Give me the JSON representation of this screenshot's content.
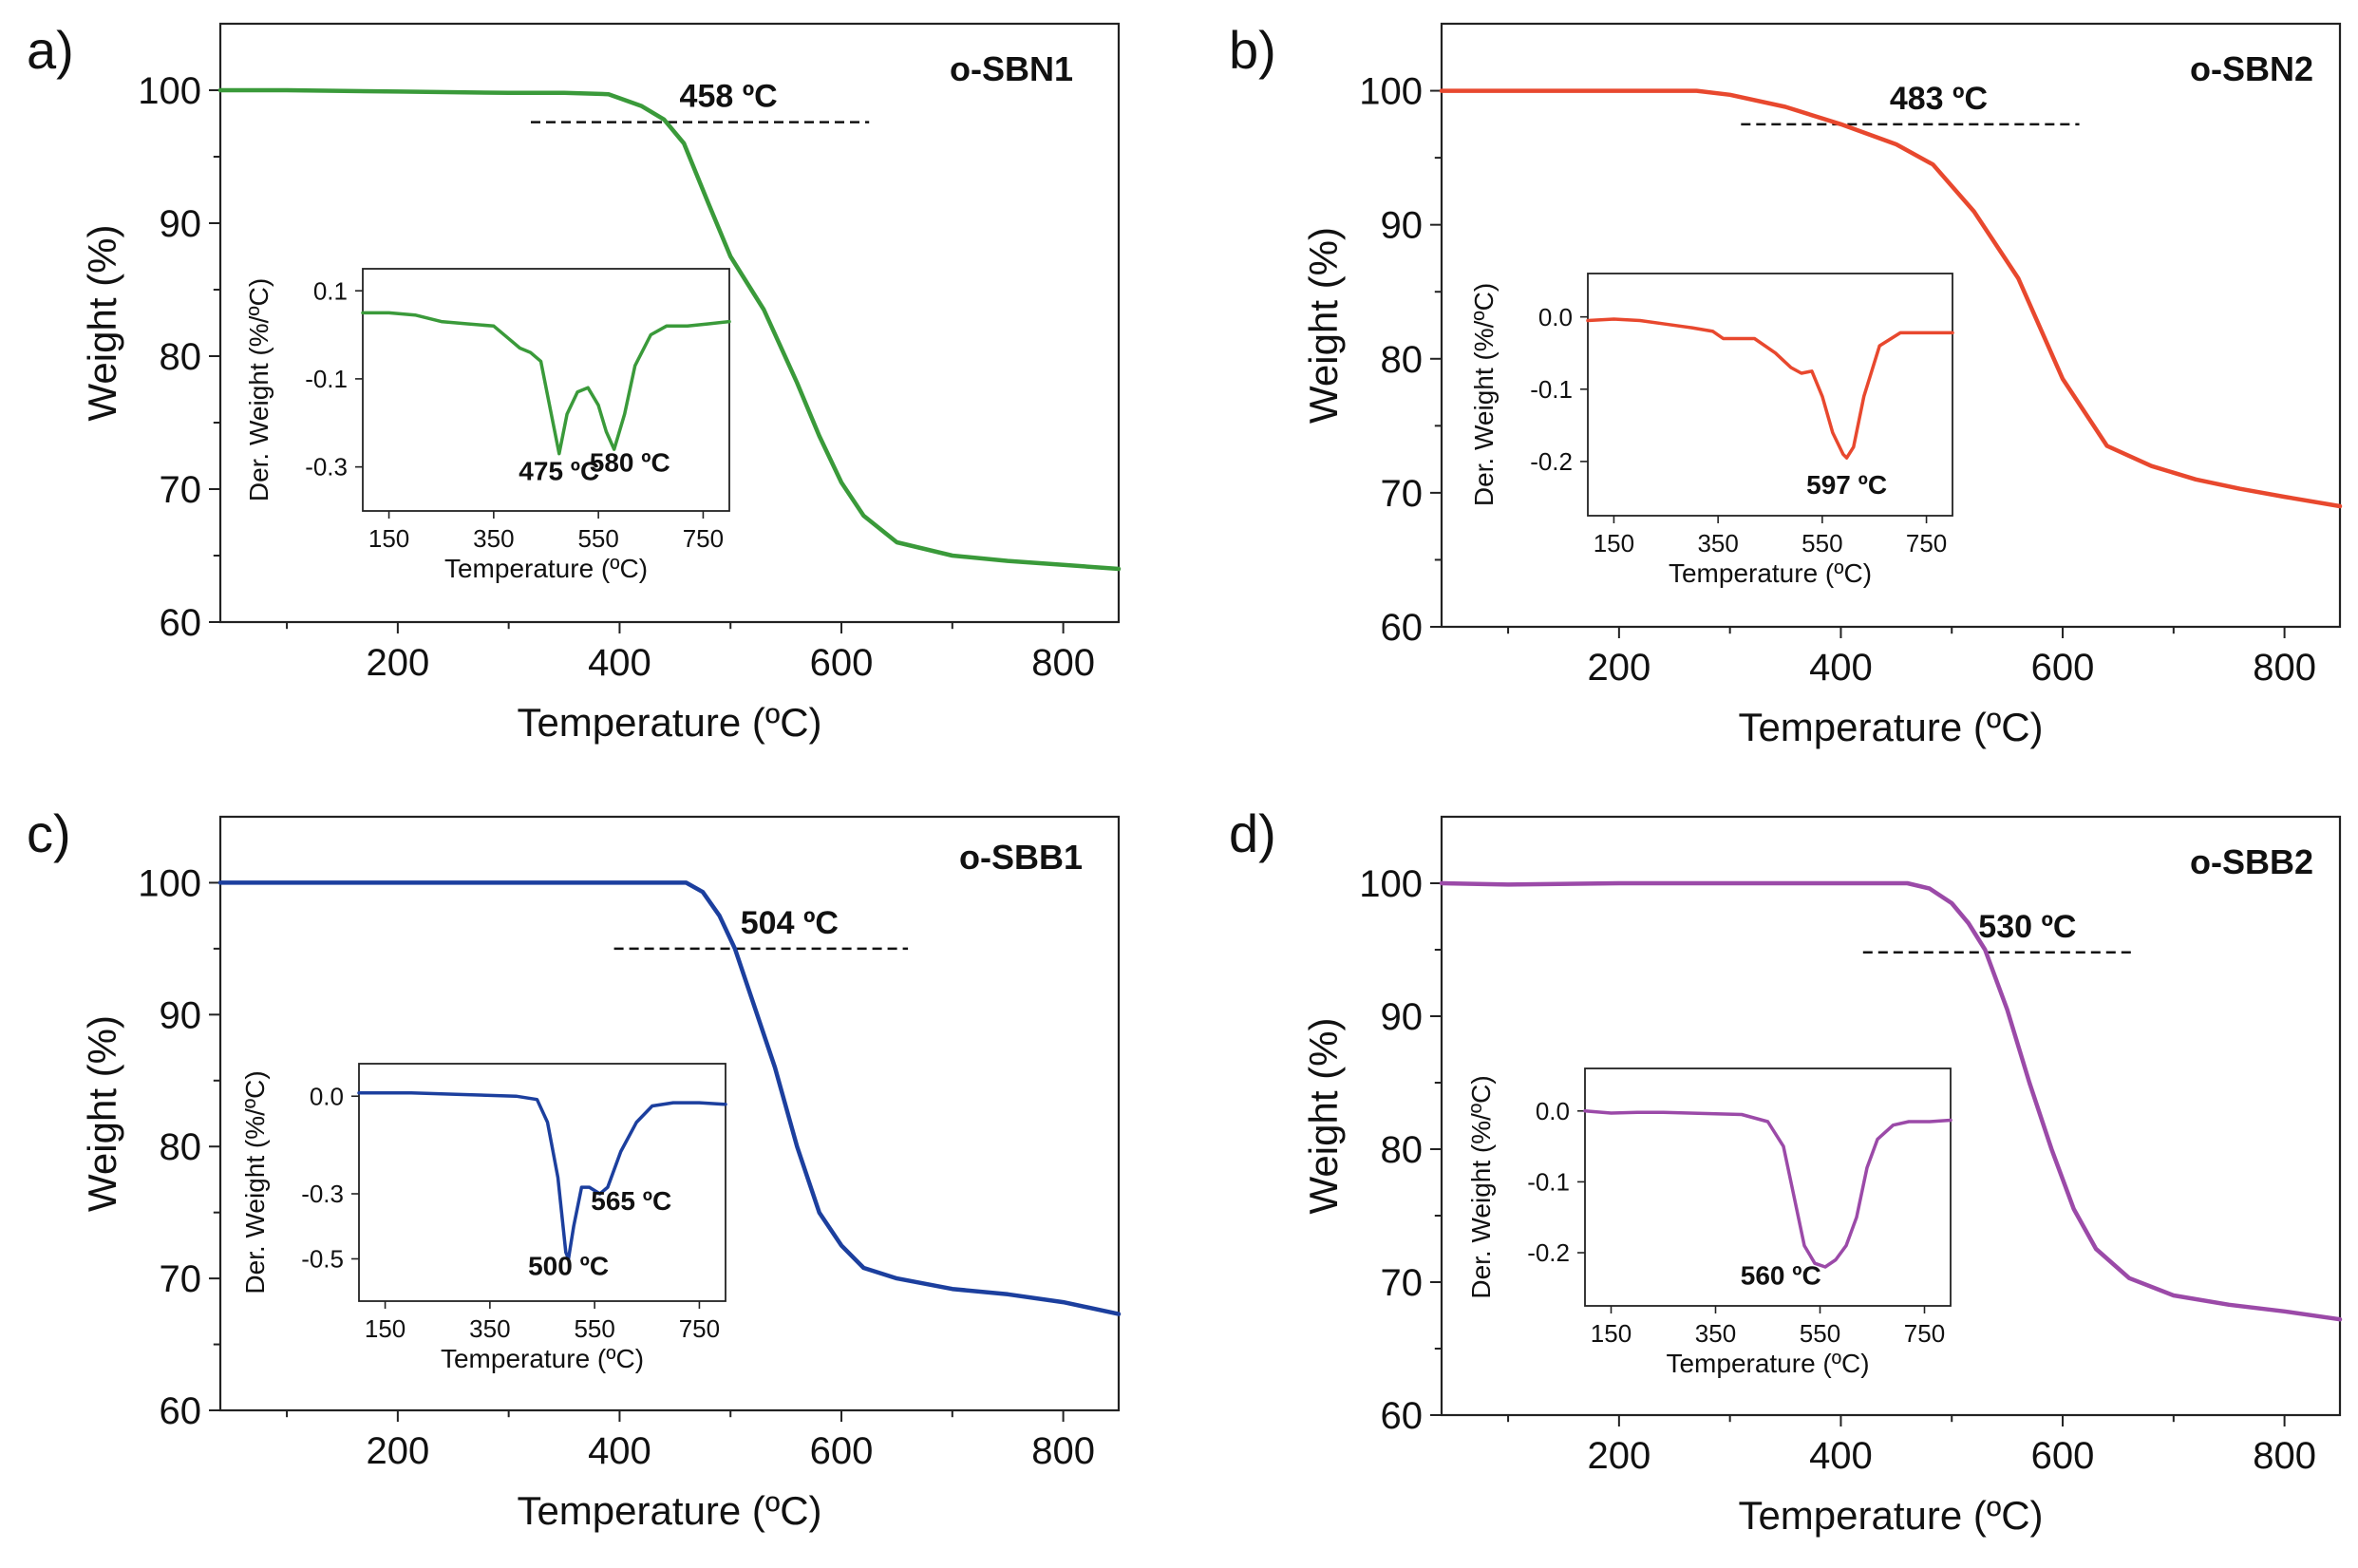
{
  "chart_data": [
    {
      "type": "line",
      "panel_label": "a)",
      "sample": "o-SBN1",
      "color": "#3a9a3a",
      "xlabel": "Temperature (ºC)",
      "ylabel": "Weight (%)",
      "xlim": [
        40,
        850
      ],
      "ylim": [
        60,
        105
      ],
      "xticks": [
        "200",
        "400",
        "600",
        "800"
      ],
      "yticks": [
        "60",
        "70",
        "80",
        "90",
        "100"
      ],
      "annotation": {
        "text": "458 ºC",
        "line_y": 97.6,
        "line_x": [
          320,
          625
        ]
      },
      "series": [
        {
          "name": "o-SBN1",
          "x": [
            40,
            100,
            200,
            300,
            350,
            390,
            400,
            420,
            440,
            458,
            480,
            500,
            530,
            560,
            580,
            600,
            620,
            650,
            700,
            750,
            800,
            850
          ],
          "y": [
            100,
            100,
            99.9,
            99.8,
            99.8,
            99.7,
            99.4,
            98.8,
            97.8,
            96,
            91.5,
            87.5,
            83.5,
            78,
            74,
            70.5,
            68,
            66,
            65,
            64.6,
            64.3,
            64
          ]
        }
      ],
      "inset": {
        "xlabel": "Temperature (ºC)",
        "ylabel": "Der. Weight (%/ºC)",
        "xlim": [
          100,
          800
        ],
        "ylim": [
          -0.4,
          0.15
        ],
        "xticks": [
          "150",
          "350",
          "550",
          "750"
        ],
        "yticks": [
          "0.1",
          "-0.1",
          "-0.3"
        ],
        "annotations": [
          {
            "text": "475 ºC",
            "x": 475,
            "y": -0.33
          },
          {
            "text": "580 ºC",
            "x": 610,
            "y": -0.31
          }
        ],
        "series": [
          {
            "name": "o-SBN1 DTG",
            "x": [
              100,
              150,
              200,
              250,
              300,
              350,
              380,
              400,
              420,
              440,
              460,
              475,
              490,
              510,
              530,
              550,
              565,
              580,
              600,
              620,
              650,
              680,
              720,
              760,
              800
            ],
            "y": [
              0.05,
              0.05,
              0.045,
              0.03,
              0.025,
              0.02,
              -0.01,
              -0.03,
              -0.04,
              -0.06,
              -0.18,
              -0.27,
              -0.18,
              -0.13,
              -0.12,
              -0.16,
              -0.22,
              -0.26,
              -0.18,
              -0.07,
              0.0,
              0.02,
              0.02,
              0.025,
              0.03
            ]
          }
        ]
      }
    },
    {
      "type": "line",
      "panel_label": "b)",
      "sample": "o-SBN2",
      "color": "#e8482e",
      "xlabel": "Temperature (ºC)",
      "ylabel": "Weight (%)",
      "xlim": [
        40,
        850
      ],
      "ylim": [
        60,
        105
      ],
      "xticks": [
        "200",
        "400",
        "600",
        "800"
      ],
      "yticks": [
        "60",
        "70",
        "80",
        "90",
        "100"
      ],
      "annotation": {
        "text": "483 ºC",
        "line_y": 97.5,
        "line_x": [
          310,
          615
        ]
      },
      "series": [
        {
          "name": "o-SBN2",
          "x": [
            40,
            100,
            200,
            270,
            300,
            350,
            400,
            450,
            483,
            520,
            560,
            600,
            640,
            680,
            720,
            760,
            800,
            850
          ],
          "y": [
            100,
            100,
            100,
            100,
            99.7,
            98.8,
            97.5,
            96,
            94.5,
            91,
            86,
            78.5,
            73.5,
            72,
            71,
            70.3,
            69.7,
            69
          ]
        }
      ],
      "inset": {
        "xlabel": "Temperature (ºC)",
        "ylabel": "Der. Weight (%/ºC)",
        "xlim": [
          100,
          800
        ],
        "ylim": [
          -0.275,
          0.06
        ],
        "xticks": [
          "150",
          "350",
          "550",
          "750"
        ],
        "yticks": [
          "0.0",
          "-0.1",
          "-0.2"
        ],
        "annotations": [
          {
            "text": "597 ºC",
            "x": 597,
            "y": -0.245
          }
        ],
        "series": [
          {
            "name": "o-SBN2 DTG",
            "x": [
              100,
              150,
              200,
              250,
              300,
              340,
              360,
              380,
              420,
              460,
              490,
              510,
              530,
              550,
              570,
              590,
              597,
              610,
              630,
              660,
              700,
              750,
              800
            ],
            "y": [
              -0.005,
              -0.003,
              -0.005,
              -0.01,
              -0.015,
              -0.02,
              -0.03,
              -0.03,
              -0.03,
              -0.05,
              -0.07,
              -0.078,
              -0.075,
              -0.11,
              -0.16,
              -0.19,
              -0.195,
              -0.18,
              -0.11,
              -0.04,
              -0.022,
              -0.022,
              -0.022
            ]
          }
        ]
      }
    },
    {
      "type": "line",
      "panel_label": "c)",
      "sample": "o-SBB1",
      "color": "#1c3f9e",
      "xlabel": "Temperature (ºC)",
      "ylabel": "Weight (%)",
      "xlim": [
        40,
        850
      ],
      "ylim": [
        60,
        105
      ],
      "xticks": [
        "200",
        "400",
        "600",
        "800"
      ],
      "yticks": [
        "60",
        "70",
        "80",
        "90",
        "100"
      ],
      "annotation": {
        "text": "504 ºC",
        "line_y": 95,
        "line_x": [
          395,
          660
        ]
      },
      "series": [
        {
          "name": "o-SBB1",
          "x": [
            40,
            100,
            200,
            300,
            400,
            460,
            475,
            490,
            504,
            520,
            540,
            560,
            580,
            600,
            620,
            650,
            700,
            750,
            800,
            850
          ],
          "y": [
            100,
            100,
            100,
            100,
            100,
            100,
            99.3,
            97.5,
            95,
            91,
            86,
            80,
            75,
            72.5,
            70.8,
            70,
            69.2,
            68.8,
            68.2,
            67.3
          ]
        }
      ],
      "inset": {
        "xlabel": "Temperature (ºC)",
        "ylabel": "Der. Weight (%/ºC)",
        "xlim": [
          100,
          800
        ],
        "ylim": [
          -0.63,
          0.1
        ],
        "xticks": [
          "150",
          "350",
          "550",
          "750"
        ],
        "yticks": [
          "0.0",
          "-0.3",
          "-0.5"
        ],
        "annotations": [
          {
            "text": "500 ºC",
            "x": 500,
            "y": -0.55
          },
          {
            "text": "565 ºC",
            "x": 620,
            "y": -0.35
          }
        ],
        "series": [
          {
            "name": "o-SBB1 DTG",
            "x": [
              100,
              150,
              200,
              300,
              400,
              440,
              460,
              480,
              495,
              500,
              510,
              525,
              540,
              560,
              575,
              600,
              630,
              660,
              700,
              750,
              800
            ],
            "y": [
              0.01,
              0.01,
              0.01,
              0.005,
              0.0,
              -0.01,
              -0.08,
              -0.25,
              -0.48,
              -0.5,
              -0.4,
              -0.28,
              -0.28,
              -0.3,
              -0.28,
              -0.17,
              -0.08,
              -0.03,
              -0.02,
              -0.02,
              -0.025
            ]
          }
        ]
      }
    },
    {
      "type": "line",
      "panel_label": "d)",
      "sample": "o-SBB2",
      "color": "#9b4aa8",
      "xlabel": "Temperature (ºC)",
      "ylabel": "Weight (%)",
      "xlim": [
        40,
        850
      ],
      "ylim": [
        60,
        105
      ],
      "xticks": [
        "200",
        "400",
        "600",
        "800"
      ],
      "yticks": [
        "60",
        "70",
        "80",
        "90",
        "100"
      ],
      "annotation": {
        "text": "530 ºC",
        "line_y": 94.8,
        "line_x": [
          420,
          665
        ]
      },
      "series": [
        {
          "name": "o-SBB2",
          "x": [
            40,
            100,
            200,
            300,
            400,
            460,
            480,
            500,
            515,
            530,
            550,
            570,
            590,
            610,
            630,
            660,
            700,
            750,
            800,
            850
          ],
          "y": [
            100,
            99.9,
            100,
            100,
            100,
            100,
            99.6,
            98.5,
            97,
            95,
            90.5,
            85,
            80,
            75.5,
            72.5,
            70.3,
            69,
            68.3,
            67.8,
            67.2
          ]
        }
      ],
      "inset": {
        "xlabel": "Temperature (ºC)",
        "ylabel": "Der. Weight (%/ºC)",
        "xlim": [
          100,
          800
        ],
        "ylim": [
          -0.275,
          0.06
        ],
        "xticks": [
          "150",
          "350",
          "550",
          "750"
        ],
        "yticks": [
          "0.0",
          "-0.1",
          "-0.2"
        ],
        "annotations": [
          {
            "text": "560 ºC",
            "x": 475,
            "y": -0.245
          }
        ],
        "series": [
          {
            "name": "o-SBB2 DTG",
            "x": [
              100,
              150,
              200,
              250,
              300,
              350,
              400,
              450,
              480,
              500,
              520,
              540,
              560,
              580,
              600,
              620,
              640,
              660,
              690,
              720,
              760,
              800
            ],
            "y": [
              0.0,
              -0.003,
              -0.002,
              -0.002,
              -0.003,
              -0.004,
              -0.005,
              -0.015,
              -0.05,
              -0.12,
              -0.19,
              -0.215,
              -0.22,
              -0.21,
              -0.19,
              -0.15,
              -0.08,
              -0.04,
              -0.02,
              -0.015,
              -0.015,
              -0.013
            ]
          }
        ]
      }
    }
  ]
}
